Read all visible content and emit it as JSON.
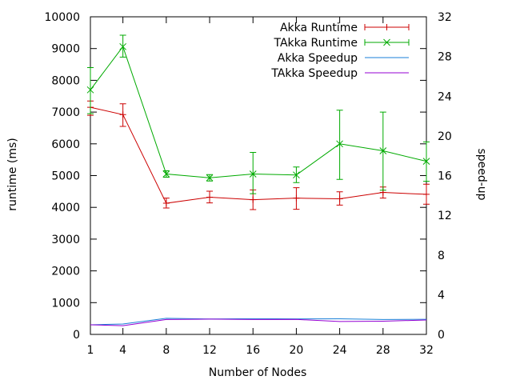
{
  "chart_data": {
    "type": "line",
    "xlabel": "Number of Nodes",
    "ylabel": "runtime (ms)",
    "y2label": "speed-up",
    "x": [
      1,
      4,
      8,
      12,
      16,
      20,
      24,
      28,
      32
    ],
    "x_ticks": [
      "1",
      "4",
      "8",
      "12",
      "16",
      "20",
      "24",
      "28",
      "32"
    ],
    "xlim": [
      1,
      32
    ],
    "ylim": [
      0,
      10000
    ],
    "y_ticks": [
      "0",
      "1000",
      "2000",
      "3000",
      "4000",
      "5000",
      "6000",
      "7000",
      "8000",
      "9000",
      "10000"
    ],
    "y2lim": [
      0,
      32
    ],
    "y2_ticks": [
      "0",
      "4",
      "8",
      "12",
      "16",
      "20",
      "24",
      "28",
      "32"
    ],
    "grid": false,
    "legend_position": "top-right",
    "series": [
      {
        "name": "Akka Runtime",
        "axis": "left",
        "color": "#cc0000",
        "marker": "plus",
        "values": [
          7150,
          6920,
          4130,
          4320,
          4240,
          4290,
          4270,
          4470,
          4410
        ],
        "err_low": [
          6900,
          6550,
          3980,
          4140,
          3930,
          3940,
          4070,
          4290,
          4100
        ],
        "err_high": [
          7350,
          7260,
          4290,
          4510,
          4550,
          4620,
          4490,
          4640,
          4730
        ]
      },
      {
        "name": "TAkka Runtime",
        "axis": "left",
        "color": "#00aa00",
        "marker": "x",
        "values": [
          7700,
          9060,
          5050,
          4930,
          5050,
          5020,
          6000,
          5780,
          5450
        ],
        "err_low": [
          6950,
          8730,
          4950,
          4830,
          4430,
          4780,
          4880,
          4540,
          4820
        ],
        "err_high": [
          8400,
          9420,
          5150,
          5030,
          5730,
          5270,
          7060,
          7000,
          6060
        ]
      },
      {
        "name": "Akka Speedup",
        "axis": "right",
        "color": "#1a7fd8",
        "values": [
          0.97,
          1.05,
          1.62,
          1.55,
          1.58,
          1.56,
          1.57,
          1.5,
          1.52
        ]
      },
      {
        "name": "TAkka Speedup",
        "axis": "right",
        "color": "#9400d3",
        "values": [
          0.97,
          0.88,
          1.5,
          1.54,
          1.5,
          1.51,
          1.3,
          1.33,
          1.45
        ]
      }
    ]
  }
}
